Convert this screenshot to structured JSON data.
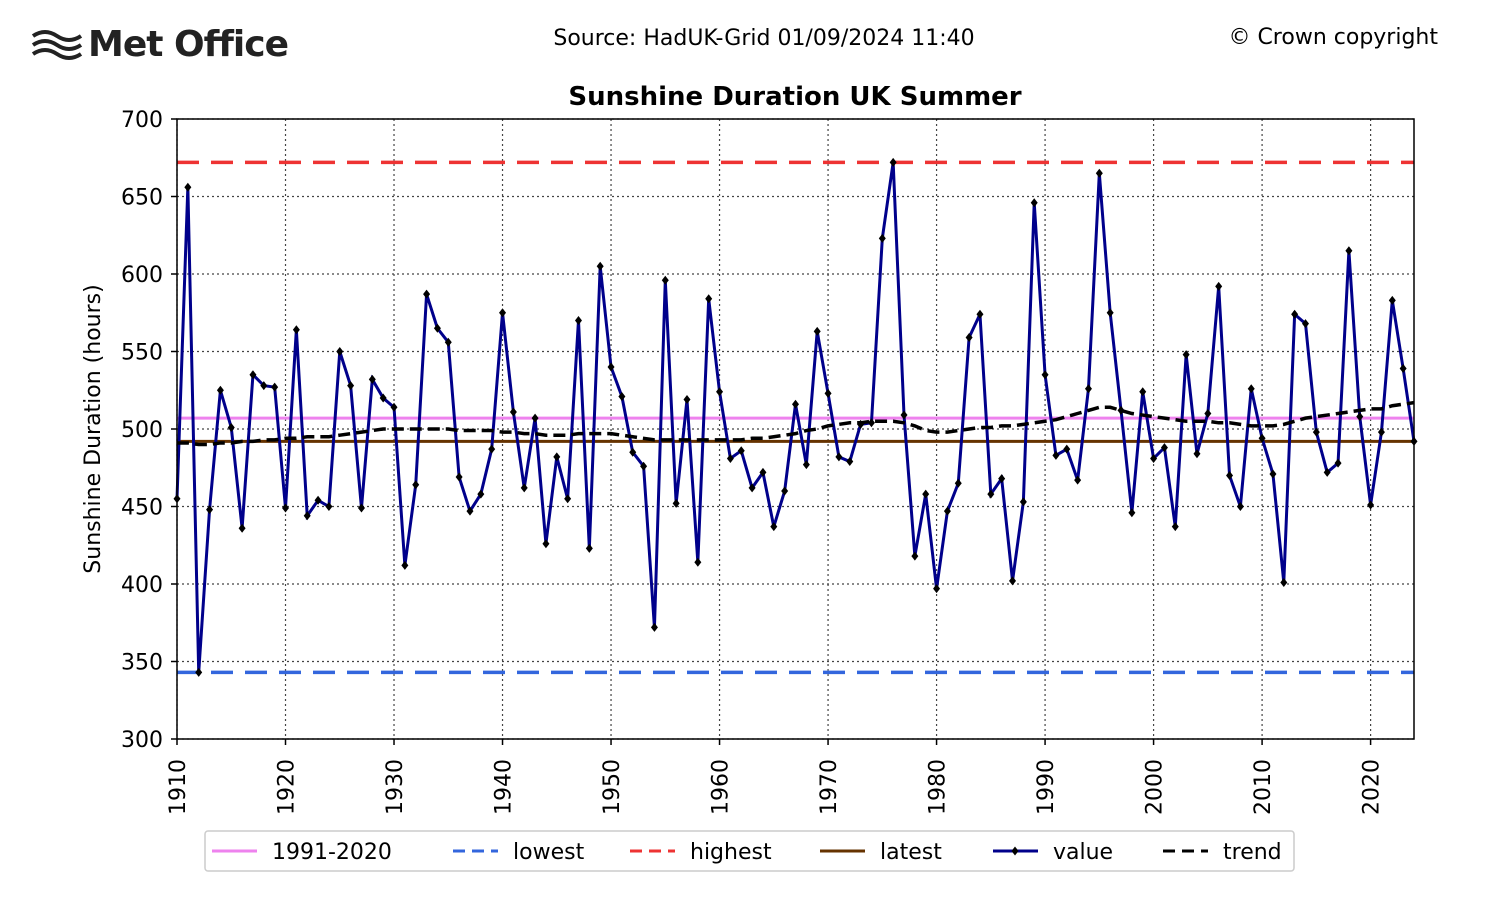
{
  "header": {
    "logo": "Met Office",
    "source": "Source: HadUK-Grid 01/09/2024 11:40",
    "copyright": "© Crown copyright"
  },
  "chart_data": {
    "type": "line",
    "title": "Sunshine Duration UK Summer",
    "y_label": "Sunshine Duration (hours)",
    "xlim": [
      1910,
      2024
    ],
    "ylim": [
      300,
      700
    ],
    "xticks": [
      1910,
      1920,
      1930,
      1940,
      1950,
      1960,
      1970,
      1980,
      1990,
      2000,
      2010,
      2020
    ],
    "yticks": [
      300,
      350,
      400,
      450,
      500,
      550,
      600,
      650,
      700
    ],
    "grid": true,
    "legend": "bottom",
    "reference_lines": [
      {
        "name": "1991-2020",
        "color": "#ee82ee",
        "style": "solid",
        "value": 507
      },
      {
        "name": "lowest",
        "color": "#3366dd",
        "style": "dashed",
        "value": 343
      },
      {
        "name": "highest",
        "color": "#ee3333",
        "style": "dashed",
        "value": 672
      },
      {
        "name": "latest",
        "color": "#663300",
        "style": "solid",
        "value": 492
      }
    ],
    "x": [
      1910,
      1911,
      1912,
      1913,
      1914,
      1915,
      1916,
      1917,
      1918,
      1919,
      1920,
      1921,
      1922,
      1923,
      1924,
      1925,
      1926,
      1927,
      1928,
      1929,
      1930,
      1931,
      1932,
      1933,
      1934,
      1935,
      1936,
      1937,
      1938,
      1939,
      1940,
      1941,
      1942,
      1943,
      1944,
      1945,
      1946,
      1947,
      1948,
      1949,
      1950,
      1951,
      1952,
      1953,
      1954,
      1955,
      1956,
      1957,
      1958,
      1959,
      1960,
      1961,
      1962,
      1963,
      1964,
      1965,
      1966,
      1967,
      1968,
      1969,
      1970,
      1971,
      1972,
      1973,
      1974,
      1975,
      1976,
      1977,
      1978,
      1979,
      1980,
      1981,
      1982,
      1983,
      1984,
      1985,
      1986,
      1987,
      1988,
      1989,
      1990,
      1991,
      1992,
      1993,
      1994,
      1995,
      1996,
      1997,
      1998,
      1999,
      2000,
      2001,
      2002,
      2003,
      2004,
      2005,
      2006,
      2007,
      2008,
      2009,
      2010,
      2011,
      2012,
      2013,
      2014,
      2015,
      2016,
      2017,
      2018,
      2019,
      2020,
      2021,
      2022,
      2023,
      2024
    ],
    "series": [
      {
        "name": "value",
        "color": "#00008b",
        "style": "solid",
        "markers": true,
        "values": [
          455,
          656,
          343,
          448,
          525,
          501,
          436,
          535,
          528,
          527,
          449,
          564,
          444,
          454,
          450,
          550,
          528,
          449,
          532,
          520,
          514,
          412,
          464,
          587,
          565,
          556,
          469,
          447,
          458,
          487,
          575,
          511,
          462,
          507,
          426,
          482,
          455,
          570,
          423,
          605,
          540,
          521,
          485,
          476,
          372,
          596,
          452,
          519,
          414,
          584,
          524,
          481,
          486,
          462,
          472,
          437,
          460,
          516,
          477,
          563,
          523,
          482,
          479,
          503,
          504,
          623,
          672,
          509,
          418,
          458,
          397,
          447,
          465,
          559,
          574,
          458,
          468,
          402,
          453,
          646,
          535,
          483,
          487,
          467,
          526,
          665,
          575,
          512,
          446,
          524,
          481,
          488,
          437,
          548,
          484,
          510,
          592,
          470,
          450,
          526,
          494,
          471,
          401,
          574,
          568,
          498,
          472,
          478,
          615,
          508,
          451,
          498,
          583,
          539,
          492
        ]
      },
      {
        "name": "trend",
        "color": "#000000",
        "style": "dashed",
        "markers": false,
        "values": [
          491,
          491,
          490,
          490,
          491,
          491,
          492,
          492,
          493,
          493,
          494,
          494,
          495,
          495,
          495,
          496,
          497,
          498,
          499,
          500,
          500,
          500,
          500,
          500,
          500,
          500,
          499,
          499,
          499,
          499,
          498,
          498,
          497,
          497,
          496,
          496,
          496,
          497,
          497,
          497,
          497,
          496,
          495,
          494,
          493,
          493,
          493,
          493,
          493,
          493,
          493,
          493,
          493,
          494,
          494,
          495,
          496,
          497,
          499,
          500,
          502,
          503,
          504,
          504,
          505,
          505,
          505,
          504,
          502,
          499,
          498,
          498,
          499,
          500,
          501,
          501,
          502,
          502,
          503,
          504,
          505,
          506,
          508,
          510,
          512,
          514,
          514,
          512,
          510,
          509,
          508,
          507,
          506,
          505,
          505,
          505,
          504,
          504,
          503,
          502,
          502,
          502,
          503,
          505,
          507,
          508,
          509,
          510,
          511,
          512,
          513,
          513,
          515,
          516,
          517
        ]
      }
    ]
  }
}
